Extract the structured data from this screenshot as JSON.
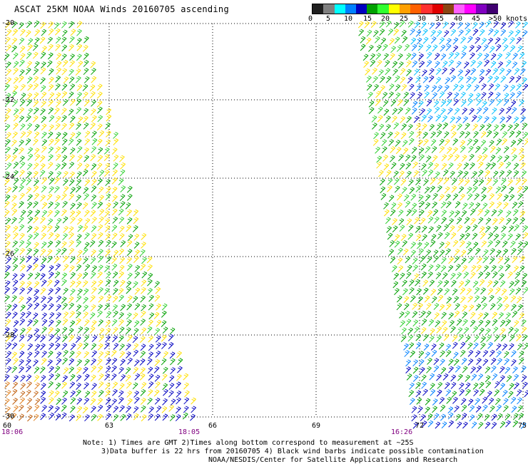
{
  "title": "ASCAT 25KM NOAA Winds 20160705 ascending",
  "legend": {
    "labels": [
      "0",
      "5",
      "10",
      "15",
      "20",
      "25",
      "30",
      "35",
      "40",
      "45",
      ">50 knots"
    ],
    "colors": [
      "#202020",
      "#808080",
      "#00ffff",
      "#0080ff",
      "#0000c0",
      "#00a000",
      "#30ff30",
      "#ffff00",
      "#ffa000",
      "#ff6000",
      "#ff3030",
      "#e00000",
      "#8b4513",
      "#ff60ff",
      "#ff00ff",
      "#8000c0",
      "#400070"
    ]
  },
  "axes": {
    "lat_labels": [
      "-20",
      "-22",
      "-24",
      "-26",
      "-28",
      "-30"
    ],
    "lon_labels": [
      "60",
      "63",
      "66",
      "69",
      "72",
      "75"
    ]
  },
  "times": [
    "18:06",
    "18:05",
    "16:26"
  ],
  "notes": {
    "line1": "Note: 1) Times are GMT 2)Times along bottom correspond to measurement at ~25S",
    "line2": "3)Data buffer is 22 hrs from 20160705 4) Black wind barbs indicate possible contamination",
    "line3": "NOAA/NESDIS/Center for Satellite Applications and Research"
  }
}
